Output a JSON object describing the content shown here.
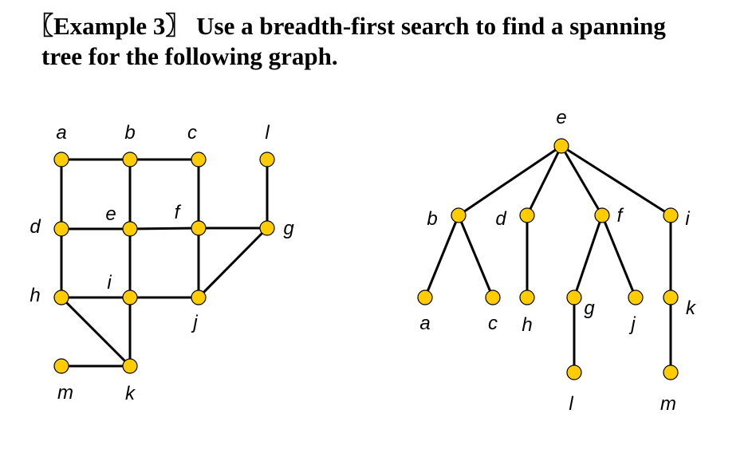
{
  "title": {
    "line1": "〖Example 3〗 Use a breadth-first search to find a spanning",
    "line2": "tree for the following graph."
  },
  "colors": {
    "node_fill": "#FFCC00",
    "edge": "#000000"
  },
  "graph": {
    "nodes": [
      "a",
      "b",
      "c",
      "l",
      "d",
      "e",
      "f",
      "g",
      "h",
      "i",
      "j",
      "m",
      "k"
    ],
    "edges": [
      [
        "a",
        "b"
      ],
      [
        "b",
        "c"
      ],
      [
        "a",
        "d"
      ],
      [
        "b",
        "e"
      ],
      [
        "c",
        "f"
      ],
      [
        "l",
        "g"
      ],
      [
        "d",
        "e"
      ],
      [
        "e",
        "f"
      ],
      [
        "f",
        "g"
      ],
      [
        "d",
        "h"
      ],
      [
        "e",
        "i"
      ],
      [
        "f",
        "j"
      ],
      [
        "g",
        "j"
      ],
      [
        "h",
        "i"
      ],
      [
        "i",
        "j"
      ],
      [
        "h",
        "k"
      ],
      [
        "i",
        "k"
      ],
      [
        "m",
        "k"
      ]
    ]
  },
  "tree": {
    "root": "e",
    "nodes": [
      "e",
      "b",
      "d",
      "f",
      "i",
      "a",
      "c",
      "h",
      "g",
      "j",
      "k",
      "l",
      "m"
    ],
    "edges": [
      [
        "e",
        "b"
      ],
      [
        "e",
        "d"
      ],
      [
        "e",
        "f"
      ],
      [
        "e",
        "i"
      ],
      [
        "b",
        "a"
      ],
      [
        "b",
        "c"
      ],
      [
        "d",
        "h"
      ],
      [
        "f",
        "g"
      ],
      [
        "f",
        "j"
      ],
      [
        "i",
        "k"
      ],
      [
        "g",
        "l"
      ],
      [
        "k",
        "m"
      ]
    ]
  }
}
